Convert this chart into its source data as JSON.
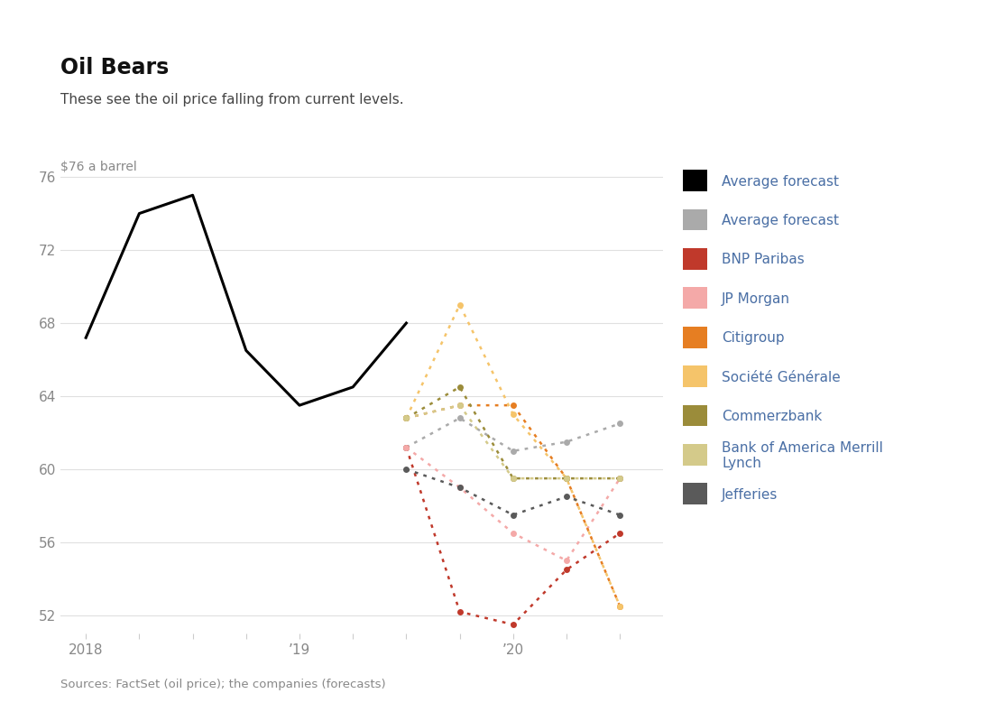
{
  "title": "Oil Bears",
  "subtitle": "These see the oil price falling from current levels.",
  "ylabel_top": "$76 a barrel",
  "source": "Sources: FactSet (oil price); the companies (forecasts)",
  "background_color": "#ffffff",
  "ylim": [
    51.0,
    77.5
  ],
  "yticks": [
    52,
    56,
    60,
    64,
    68,
    72,
    76
  ],
  "xlim": [
    2017.88,
    2020.7
  ],
  "series": {
    "avg_forecast_solid": {
      "label": "Average forecast",
      "color": "#000000",
      "style": "solid",
      "linewidth": 2.2,
      "marker": false,
      "x": [
        2018.0,
        2018.25,
        2018.5,
        2018.75,
        2019.0,
        2019.25,
        2019.5
      ],
      "y": [
        67.2,
        74.0,
        75.0,
        66.5,
        63.5,
        64.5,
        68.0
      ]
    },
    "avg_forecast_dotted": {
      "label": "Average forecast",
      "color": "#aaaaaa",
      "style": "dotted",
      "linewidth": 1.8,
      "marker": true,
      "x": [
        2019.5,
        2019.75,
        2020.0,
        2020.25,
        2020.5
      ],
      "y": [
        61.2,
        62.8,
        61.0,
        61.5,
        62.5
      ]
    },
    "bnp_paribas": {
      "label": "BNP Paribas",
      "color": "#c0392b",
      "style": "dotted",
      "linewidth": 1.8,
      "marker": true,
      "x": [
        2019.5,
        2019.75,
        2020.0,
        2020.25,
        2020.5
      ],
      "y": [
        61.2,
        52.2,
        51.5,
        54.5,
        56.5
      ]
    },
    "jp_morgan": {
      "label": "JP Morgan",
      "color": "#f4a9a8",
      "style": "dotted",
      "linewidth": 1.8,
      "marker": true,
      "x": [
        2019.5,
        2019.75,
        2020.0,
        2020.25,
        2020.5
      ],
      "y": [
        61.2,
        59.0,
        56.5,
        55.0,
        59.5
      ]
    },
    "citigroup": {
      "label": "Citigroup",
      "color": "#e67e22",
      "style": "dotted",
      "linewidth": 1.8,
      "marker": true,
      "x": [
        2019.5,
        2019.75,
        2020.0,
        2020.25,
        2020.5
      ],
      "y": [
        62.8,
        63.5,
        63.5,
        59.5,
        52.5
      ]
    },
    "societe_generale": {
      "label": "Société Générale",
      "color": "#f5c46a",
      "style": "dotted",
      "linewidth": 1.8,
      "marker": true,
      "x": [
        2019.5,
        2019.75,
        2020.0,
        2020.25,
        2020.5
      ],
      "y": [
        62.8,
        69.0,
        63.0,
        59.5,
        52.5
      ]
    },
    "commerzbank": {
      "label": "Commerzbank",
      "color": "#9b8c3a",
      "style": "dotted",
      "linewidth": 1.8,
      "marker": true,
      "x": [
        2019.5,
        2019.75,
        2020.0,
        2020.25,
        2020.5
      ],
      "y": [
        62.8,
        64.5,
        59.5,
        59.5,
        59.5
      ]
    },
    "boaml": {
      "label": "Bank of America Merrill\nLynch",
      "color": "#d4ca8a",
      "style": "dotted",
      "linewidth": 1.8,
      "marker": true,
      "x": [
        2019.5,
        2019.75,
        2020.0,
        2020.25,
        2020.5
      ],
      "y": [
        62.8,
        63.5,
        59.5,
        59.5,
        59.5
      ]
    },
    "jefferies": {
      "label": "Jefferies",
      "color": "#5a5a5a",
      "style": "dotted",
      "linewidth": 1.8,
      "marker": true,
      "x": [
        2019.5,
        2019.75,
        2020.0,
        2020.25,
        2020.5
      ],
      "y": [
        60.0,
        59.0,
        57.5,
        58.5,
        57.5
      ]
    }
  },
  "xtick_positions": [
    2018.0,
    2018.25,
    2018.5,
    2018.75,
    2019.0,
    2019.25,
    2019.5,
    2019.75,
    2020.0,
    2020.25,
    2020.5
  ],
  "xtick_labels": [
    "2018",
    "",
    "",
    "",
    "’19",
    "",
    "",
    "",
    "’20",
    "",
    ""
  ],
  "grid_color": "#e0e0e0",
  "title_color": "#111111",
  "subtitle_color": "#444444",
  "label_color": "#4a6fa5",
  "tick_color": "#888888"
}
